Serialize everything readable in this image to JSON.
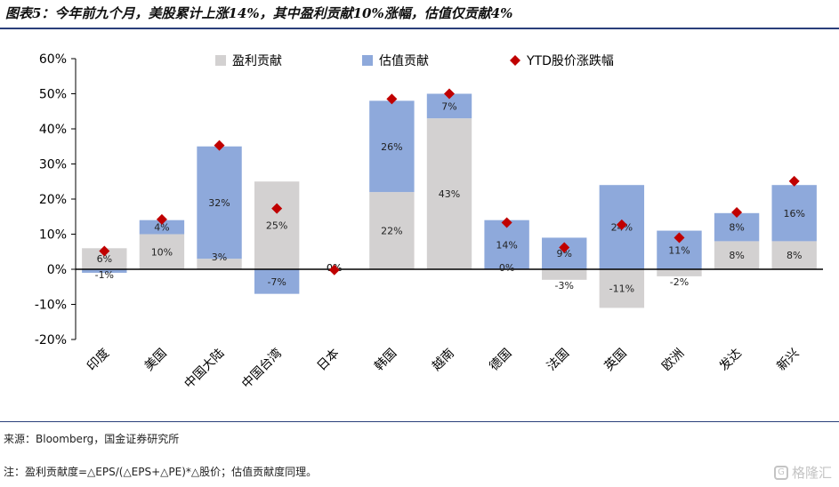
{
  "title": "图表5：今年前九个月，美股累计上涨14%，其中盈利贡献10%涨幅，估值仅贡献4%",
  "source": "来源：Bloomberg，国金证券研究所",
  "note": "注：盈利贡献度=△EPS/(△EPS+△PE)*△股价；估值贡献度同理。",
  "watermark": "格隆汇",
  "watermark_icon": "g-logo-icon",
  "colors": {
    "earnings": "#d3d1d1",
    "valuation": "#8ea9db",
    "ytd": "#c00000",
    "axis": "#000000"
  },
  "chart_data": {
    "type": "bar",
    "stacked": true,
    "categories": [
      "印度",
      "美国",
      "中国大陆",
      "中国台湾",
      "日本",
      "韩国",
      "越南",
      "德国",
      "法国",
      "英国",
      "欧洲",
      "发达",
      "新兴"
    ],
    "series": [
      {
        "name": "盈利贡献",
        "values": [
          6,
          10,
          3,
          25,
          0,
          22,
          43,
          0,
          -3,
          -11,
          -2,
          8,
          8
        ],
        "labels": [
          "6%",
          "10%",
          "3%",
          "25%",
          "0%",
          "22%",
          "43%",
          "0%",
          "-3%",
          "-11%",
          "-2%",
          "8%",
          "8%"
        ]
      },
      {
        "name": "估值贡献",
        "values": [
          -1,
          4,
          32,
          -7,
          0,
          26,
          7,
          14,
          9,
          24,
          11,
          8,
          16
        ],
        "labels": [
          "-1%",
          "4%",
          "32%",
          "-7%",
          "0%",
          "26%",
          "7%",
          "14%",
          "9%",
          "24%",
          "11%",
          "8%",
          "16%"
        ]
      },
      {
        "name": "YTD股价涨跌幅",
        "type": "scatter",
        "marker": "diamond",
        "values": [
          5.2,
          14.2,
          35.3,
          17.3,
          -0.2,
          48.5,
          50.0,
          13.3,
          6.2,
          12.7,
          9.0,
          16.2,
          25.1
        ]
      }
    ],
    "ylim": [
      -20,
      60
    ],
    "yticks": [
      "-20%",
      "-10%",
      "0%",
      "10%",
      "20%",
      "30%",
      "40%",
      "50%",
      "60%"
    ],
    "grid": false,
    "legend": "top"
  }
}
